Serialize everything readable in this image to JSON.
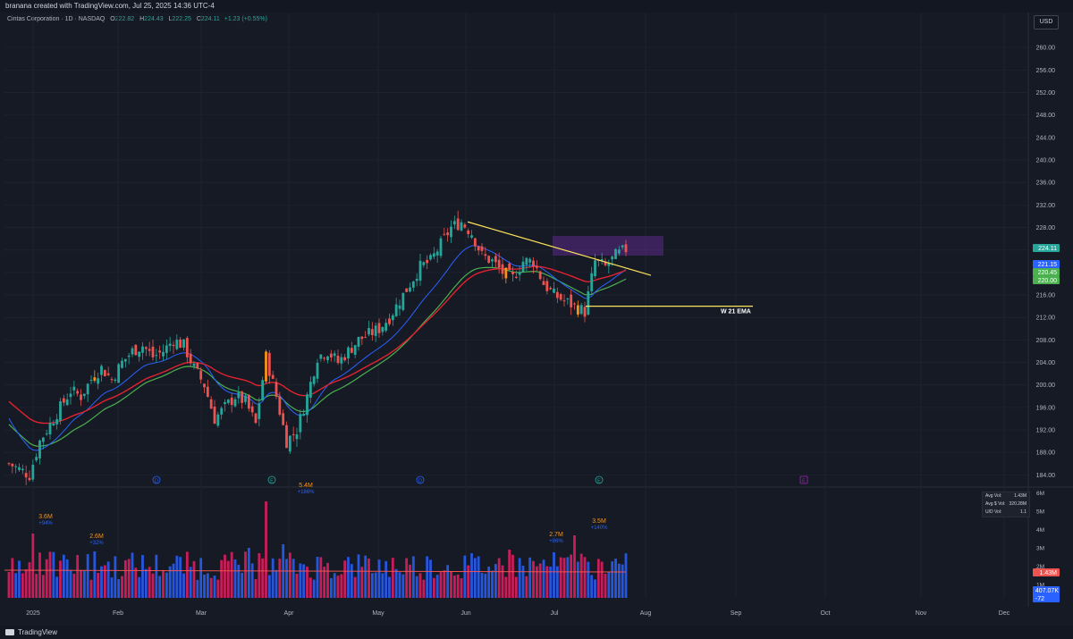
{
  "header": {
    "credit": "branana created with TradingView.com, Jul 25, 2025 14:36 UTC-4",
    "symbol": "Cintas Corporation · 1D · NASDAQ",
    "o_label": "O",
    "o_val": "222.82",
    "h_label": "H",
    "h_val": "224.43",
    "l_label": "L",
    "l_val": "222.25",
    "c_label": "C",
    "c_val": "224.11",
    "change": "+1.23 (+0.55%)",
    "currency": "USD"
  },
  "footer": {
    "brand": "TradingView"
  },
  "colors": {
    "up": "#26a69a",
    "down": "#ef5350",
    "highlight": "#f7931a",
    "ema_red": "#e0232e",
    "ema_green": "#4caf50",
    "ema_blue": "#2962ff",
    "vol_up": "#2962ff",
    "vol_down": "#e91e63",
    "trendline": "#fde35b",
    "zone": "#5b2a86",
    "background": "#161a25"
  },
  "chart_data": {
    "type": "candlestick",
    "title": "Cintas Corporation · 1D · NASDAQ",
    "ylim": [
      182,
      264
    ],
    "y_ticks": [
      "260.00",
      "256.00",
      "252.00",
      "248.00",
      "244.00",
      "240.00",
      "236.00",
      "232.00",
      "228.00",
      "224.00",
      "220.00",
      "216.00",
      "212.00",
      "208.00",
      "204.00",
      "200.00",
      "196.00",
      "192.00",
      "188.00",
      "184.00"
    ],
    "x_ticks": [
      "2025",
      "Feb",
      "Mar",
      "Apr",
      "May",
      "Jun",
      "Jul",
      "Aug",
      "Sep",
      "Oct",
      "Nov",
      "Dec"
    ],
    "price_labels": [
      {
        "value": "224.11",
        "color": "#26a69a"
      },
      {
        "value": "221.15",
        "color": "#2962ff"
      },
      {
        "value": "220.45",
        "color": "#4caf50"
      },
      {
        "value": "220.00",
        "color": "#4caf50"
      }
    ],
    "annotations": {
      "trendline_label": "",
      "hline_label": "W 21 EMA",
      "hline_value": 214.0,
      "zone": {
        "from_month": "Jul",
        "top": 226.5,
        "bottom": 223.0
      }
    },
    "event_markers": [
      "D",
      "E",
      "D",
      "E",
      "E"
    ],
    "series": [
      {
        "name": "Close (approx.)",
        "points": [
          [
            0,
            186
          ],
          [
            3,
            185
          ],
          [
            6,
            184
          ],
          [
            9,
            190
          ],
          [
            12,
            193
          ],
          [
            15,
            196
          ],
          [
            18,
            199
          ],
          [
            21,
            198
          ],
          [
            24,
            201
          ],
          [
            27,
            203
          ],
          [
            30,
            201
          ],
          [
            33,
            204
          ],
          [
            36,
            206
          ],
          [
            39,
            207
          ],
          [
            42,
            205
          ],
          [
            45,
            206
          ],
          [
            48,
            208
          ],
          [
            51,
            207
          ],
          [
            54,
            203
          ],
          [
            57,
            200
          ],
          [
            60,
            194
          ],
          [
            63,
            196
          ],
          [
            66,
            198
          ],
          [
            69,
            197
          ],
          [
            72,
            193
          ],
          [
            75,
            205
          ],
          [
            78,
            198
          ],
          [
            81,
            190
          ],
          [
            84,
            192
          ],
          [
            87,
            198
          ],
          [
            90,
            205
          ],
          [
            93,
            206
          ],
          [
            96,
            204
          ],
          [
            99,
            206
          ],
          [
            102,
            208
          ],
          [
            105,
            209
          ],
          [
            108,
            210
          ],
          [
            111,
            212
          ],
          [
            114,
            215
          ],
          [
            117,
            218
          ],
          [
            120,
            221
          ],
          [
            123,
            222
          ],
          [
            126,
            225
          ],
          [
            129,
            228
          ],
          [
            132,
            229
          ],
          [
            135,
            227
          ],
          [
            138,
            223
          ],
          [
            141,
            222
          ],
          [
            144,
            220
          ],
          [
            147,
            219
          ],
          [
            150,
            222
          ],
          [
            153,
            222
          ],
          [
            156,
            218
          ],
          [
            159,
            216
          ],
          [
            162,
            215
          ],
          [
            165,
            214
          ],
          [
            168,
            213
          ],
          [
            171,
            222
          ],
          [
            174,
            221
          ],
          [
            177,
            223
          ],
          [
            180,
            224.11
          ]
        ]
      }
    ],
    "volume": {
      "y_ticks": [
        "6M",
        "5M",
        "4M",
        "3M",
        "2M",
        "1M"
      ],
      "labels": [
        {
          "text": "3.6M",
          "sub": "+94%"
        },
        {
          "text": "2.6M",
          "sub": "+32%"
        },
        {
          "text": "5.4M",
          "sub": "+186%"
        },
        {
          "text": "2.7M",
          "sub": "+86%"
        },
        {
          "text": "3.5M",
          "sub": "+140%"
        }
      ],
      "current_avg_label": "1.43M",
      "current_label": "407.07K",
      "current_sub": "-72"
    },
    "volume_table": [
      {
        "label": "Avg Vol:",
        "value": "1.43M"
      },
      {
        "label": "Avg $ Vol:",
        "value": "320.28M"
      },
      {
        "label": "U/D Vol:",
        "value": "1.1"
      }
    ]
  }
}
